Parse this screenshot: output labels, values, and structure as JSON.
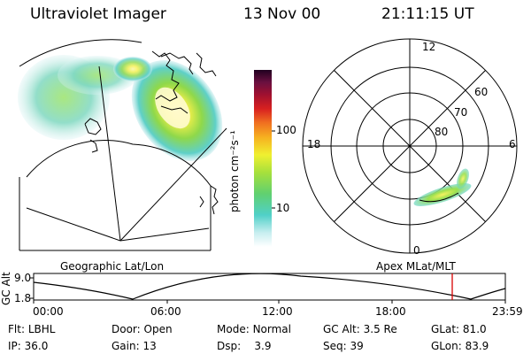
{
  "header": {
    "title": "Ultraviolet Imager",
    "date": "13 Nov 00",
    "time": "21:11:15 UT"
  },
  "colorbar": {
    "unit_label": "photon cm⁻²s⁻¹",
    "tick_labels": [
      "100",
      "10"
    ],
    "scale": "log"
  },
  "left_panel": {
    "label": "Geographic Lat/Lon"
  },
  "right_panel": {
    "label": "Apex MLat/MLT",
    "mlt_labels": [
      "12",
      "18",
      "6",
      "0"
    ],
    "lat_labels": [
      "60",
      "70",
      "80"
    ]
  },
  "altitude_plot": {
    "y_axis_label": "GC Alt",
    "y_ticks": [
      "9.0",
      "1.8"
    ],
    "x_ticks": [
      "00:00",
      "06:00",
      "12:00",
      "18:00",
      "23:59"
    ],
    "current_marker_time": "21:11",
    "marker_color": "#d80000"
  },
  "info": {
    "row1": [
      {
        "label": "Flt:",
        "value": "LBHL"
      },
      {
        "label": "Door:",
        "value": "Open"
      },
      {
        "label": "Mode:",
        "value": "Normal"
      },
      {
        "label": "GC Alt:",
        "value": "3.5 Re"
      },
      {
        "label": "GLat:",
        "value": "81.0"
      }
    ],
    "row2": [
      {
        "label": "IP:",
        "value": "36.0"
      },
      {
        "label": "Gain:",
        "value": "13"
      },
      {
        "label": "Dsp:",
        "value": "3.9"
      },
      {
        "label": "Seq:",
        "value": "39"
      },
      {
        "label": "GLon:",
        "value": "83.9"
      }
    ]
  }
}
